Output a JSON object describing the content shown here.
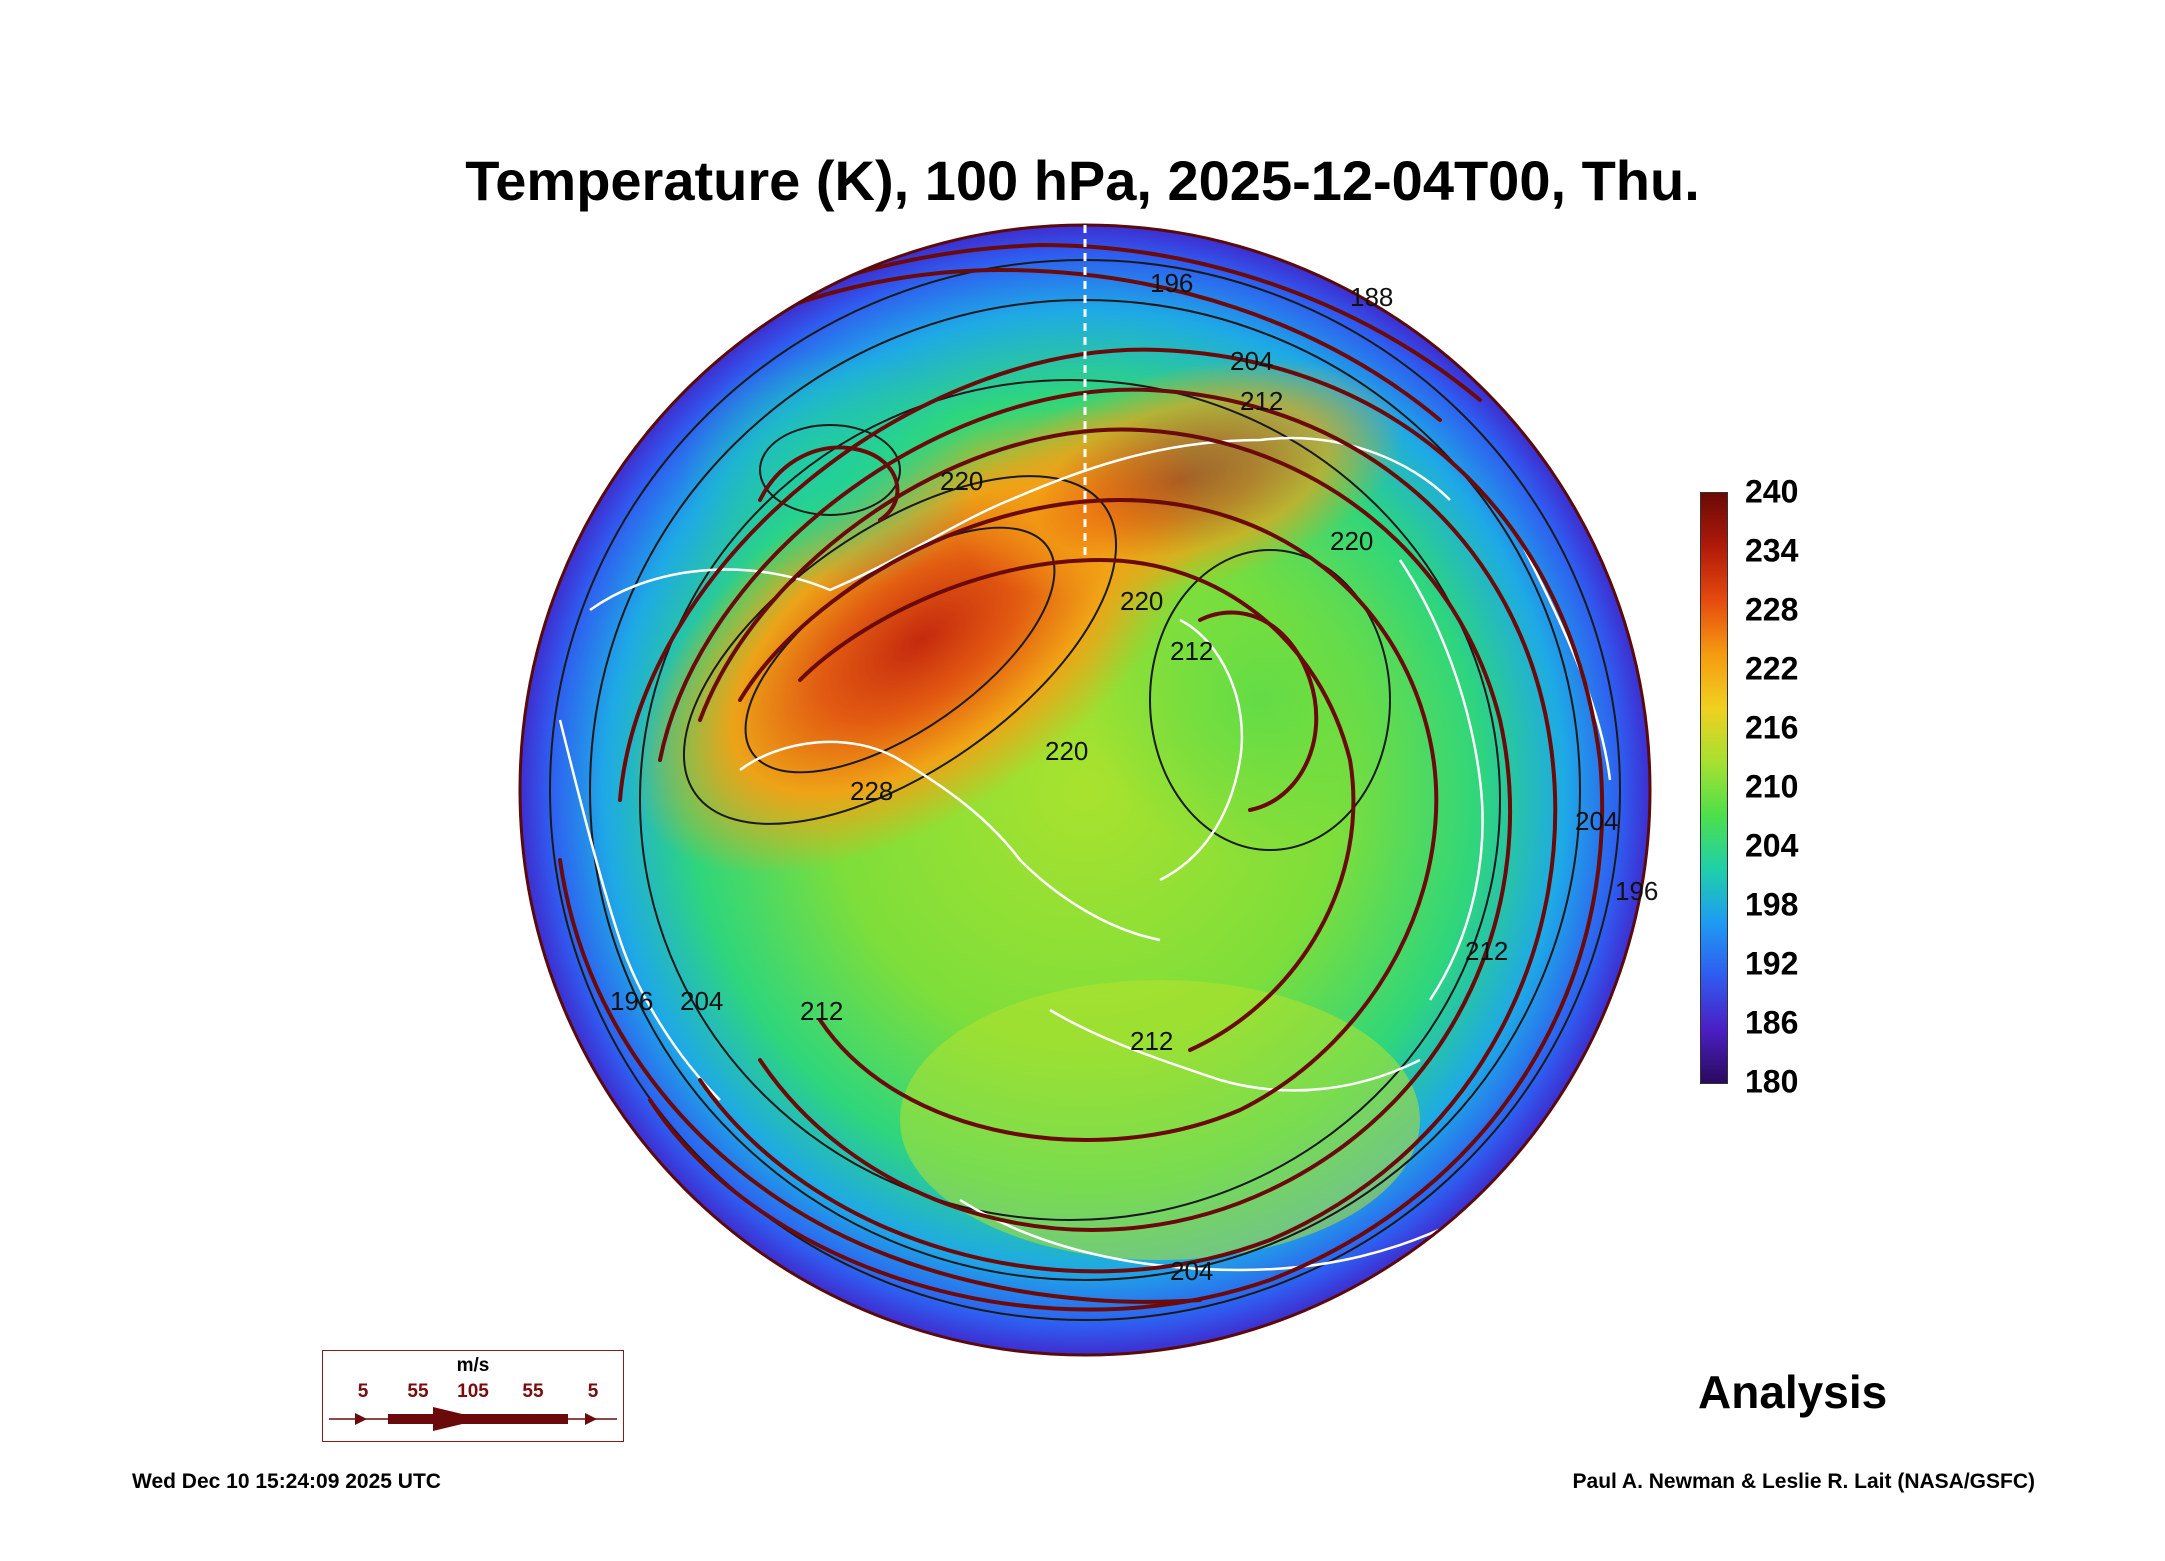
{
  "title": "Temperature (K), 100 hPa, 2025-12-04T00, Thu.",
  "colorbar": {
    "min": 180,
    "max": 240,
    "ticks": [
      "240",
      "234",
      "228",
      "222",
      "216",
      "210",
      "204",
      "198",
      "192",
      "186",
      "180"
    ],
    "colors": [
      "#2a0a5e",
      "#4b1fc4",
      "#2f5cf0",
      "#1e9cf2",
      "#1fd0a8",
      "#4ee04a",
      "#a8e030",
      "#f0d020",
      "#f59a10",
      "#e64a0e",
      "#b01a0a",
      "#6a0a06"
    ]
  },
  "contour_labels": [
    "196",
    "188",
    "204",
    "212",
    "220",
    "220",
    "220",
    "220",
    "228",
    "212",
    "204",
    "196",
    "212",
    "212",
    "204",
    "196",
    "212",
    "204"
  ],
  "analysis_label": "Analysis",
  "legend": {
    "unit": "m/s",
    "speeds": [
      "5",
      "55",
      "105",
      "55",
      "5"
    ]
  },
  "footer": {
    "timestamp": "Wed Dec 10 15:24:09 2025 UTC",
    "credit": "Paul A. Newman & Leslie R. Lait (NASA/GSFC)"
  },
  "colors": {
    "streamline": "#6b0a0a",
    "coastline": "#ffffff",
    "contour": "#1a1a1a"
  }
}
